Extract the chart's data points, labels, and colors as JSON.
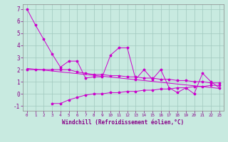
{
  "xlabel": "Windchill (Refroidissement éolien,°C)",
  "background_color": "#c8eae0",
  "grid_color": "#a0c8be",
  "line_color": "#cc00cc",
  "x_data": [
    0,
    1,
    2,
    3,
    4,
    5,
    6,
    7,
    8,
    9,
    10,
    11,
    12,
    13,
    14,
    15,
    16,
    17,
    18,
    19,
    20,
    21,
    22,
    23
  ],
  "main_curve": [
    7.0,
    5.7,
    4.5,
    3.3,
    2.2,
    2.7,
    2.7,
    1.3,
    1.4,
    1.4,
    3.2,
    3.8,
    3.8,
    1.2,
    2.0,
    1.2,
    2.0,
    0.5,
    0.1,
    0.5,
    0.0,
    1.7,
    1.0,
    0.5
  ],
  "series_upper": [
    2.0,
    2.0,
    2.0,
    2.0,
    2.0,
    2.0,
    1.8,
    1.7,
    1.6,
    1.6,
    1.5,
    1.5,
    1.4,
    1.4,
    1.3,
    1.3,
    1.2,
    1.2,
    1.1,
    1.1,
    1.0,
    1.0,
    0.9,
    0.9
  ],
  "series_lower_x": [
    3,
    4,
    5,
    6,
    7,
    8,
    9,
    10,
    11,
    12,
    13,
    14,
    15,
    16,
    17,
    18,
    19,
    20,
    21,
    22,
    23
  ],
  "series_lower_y": [
    -0.8,
    -0.8,
    -0.5,
    -0.3,
    -0.1,
    0.0,
    0.0,
    0.1,
    0.1,
    0.2,
    0.2,
    0.3,
    0.3,
    0.4,
    0.4,
    0.5,
    0.5,
    0.6,
    0.6,
    0.7,
    0.7
  ],
  "trend_line": [
    [
      0,
      2.1
    ],
    [
      23,
      0.45
    ]
  ],
  "ylim": [
    -1.4,
    7.4
  ],
  "xlim": [
    -0.5,
    23.5
  ],
  "yticks": [
    -1,
    0,
    1,
    2,
    3,
    4,
    5,
    6,
    7
  ],
  "xticks": [
    0,
    1,
    2,
    3,
    4,
    5,
    6,
    7,
    8,
    9,
    10,
    11,
    12,
    13,
    14,
    15,
    16,
    17,
    18,
    19,
    20,
    21,
    22,
    23
  ]
}
